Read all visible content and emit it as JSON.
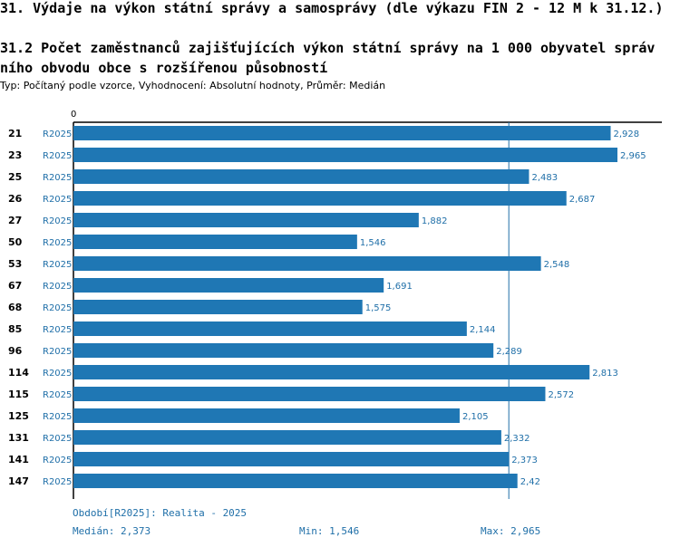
{
  "title": "31. Výdaje na výkon státní správy a samosprávy (dle výkazu FIN 2 - 12 M k 31.12.)",
  "subtitle": "31.2 Počet zaměstnanců zajišťujících výkon státní správy na 1 000 obyvatel správního obvodu obce s rozšířenou působností",
  "type_line": "Typ: Počítaný podle vzorce, Vyhodnocení: Absolutní hodnoty, Průměr: Medián",
  "chart_data": {
    "type": "bar",
    "orientation": "horizontal",
    "x_axis_zero_label": "0",
    "series_name": "R2025",
    "categories": [
      "21",
      "23",
      "25",
      "26",
      "27",
      "50",
      "53",
      "67",
      "68",
      "85",
      "96",
      "114",
      "115",
      "125",
      "131",
      "141",
      "147"
    ],
    "period_labels": [
      "R2025",
      "R2025",
      "R2025",
      "R2025",
      "R2025",
      "R2025",
      "R2025",
      "R2025",
      "R2025",
      "R2025",
      "R2025",
      "R2025",
      "R2025",
      "R2025",
      "R2025",
      "R2025",
      "R2025"
    ],
    "values": [
      2.928,
      2.965,
      2.483,
      2.687,
      1.882,
      1.546,
      2.548,
      1.691,
      1.575,
      2.144,
      2.289,
      2.813,
      2.572,
      2.105,
      2.332,
      2.373,
      2.42
    ],
    "value_labels": [
      "2,928",
      "2,965",
      "2,483",
      "2,687",
      "1,882",
      "1,546",
      "2,548",
      "1,691",
      "1,575",
      "2,144",
      "2,289",
      "2,813",
      "2,572",
      "2,105",
      "2,332",
      "2,373",
      "2,42"
    ],
    "xlim": [
      0,
      2.965
    ],
    "median": 2.373,
    "bar_color": "#1f77b4",
    "label_color": "#1f6fa8"
  },
  "footer": {
    "period": "Období[R2025]: Realita - 2025",
    "median": "Medián: 2,373",
    "min": "Min: 1,546",
    "max": "Max: 2,965"
  }
}
